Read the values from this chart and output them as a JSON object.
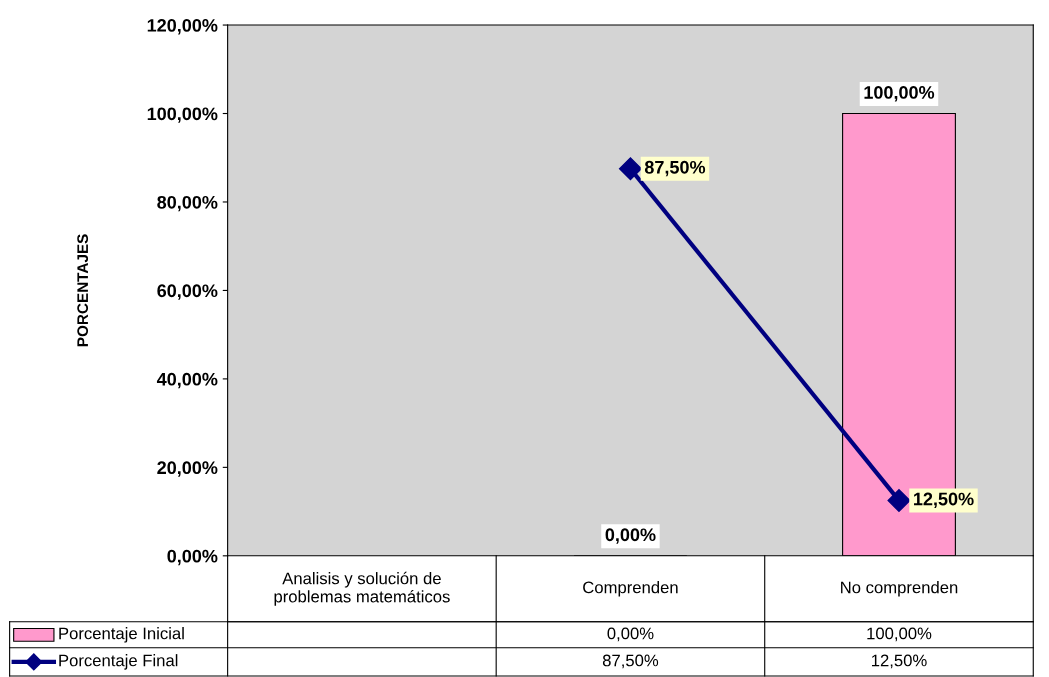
{
  "chart_data": {
    "type": "bar",
    "categories": [
      "Analisis y solución de\nproblemas matemáticos",
      "Comprenden",
      "No comprenden"
    ],
    "ylabel": "PORCENTAJES",
    "series": [
      {
        "name": "Porcentaje Inicial",
        "color": "#ff99cc",
        "values": [
          null,
          0,
          100
        ],
        "value_labels": [
          null,
          "0,00%",
          "100,00%"
        ]
      },
      {
        "name": "Porcentaje Final",
        "type": "line",
        "color": "#000080",
        "marker": "diamond",
        "values": [
          null,
          87.5,
          12.5
        ],
        "value_labels": [
          null,
          "87,50%",
          "12,50%"
        ]
      }
    ],
    "ylim": [
      0,
      120
    ],
    "yticks": [
      {
        "value": 0,
        "label": "0,00%"
      },
      {
        "value": 20,
        "label": "20,00%"
      },
      {
        "value": 40,
        "label": "40,00%"
      },
      {
        "value": 60,
        "label": "60,00%"
      },
      {
        "value": 80,
        "label": "80,00%"
      },
      {
        "value": 100,
        "label": "100,00%"
      },
      {
        "value": 120,
        "label": "120,00%"
      }
    ],
    "grid": false,
    "legend": "bottom"
  }
}
